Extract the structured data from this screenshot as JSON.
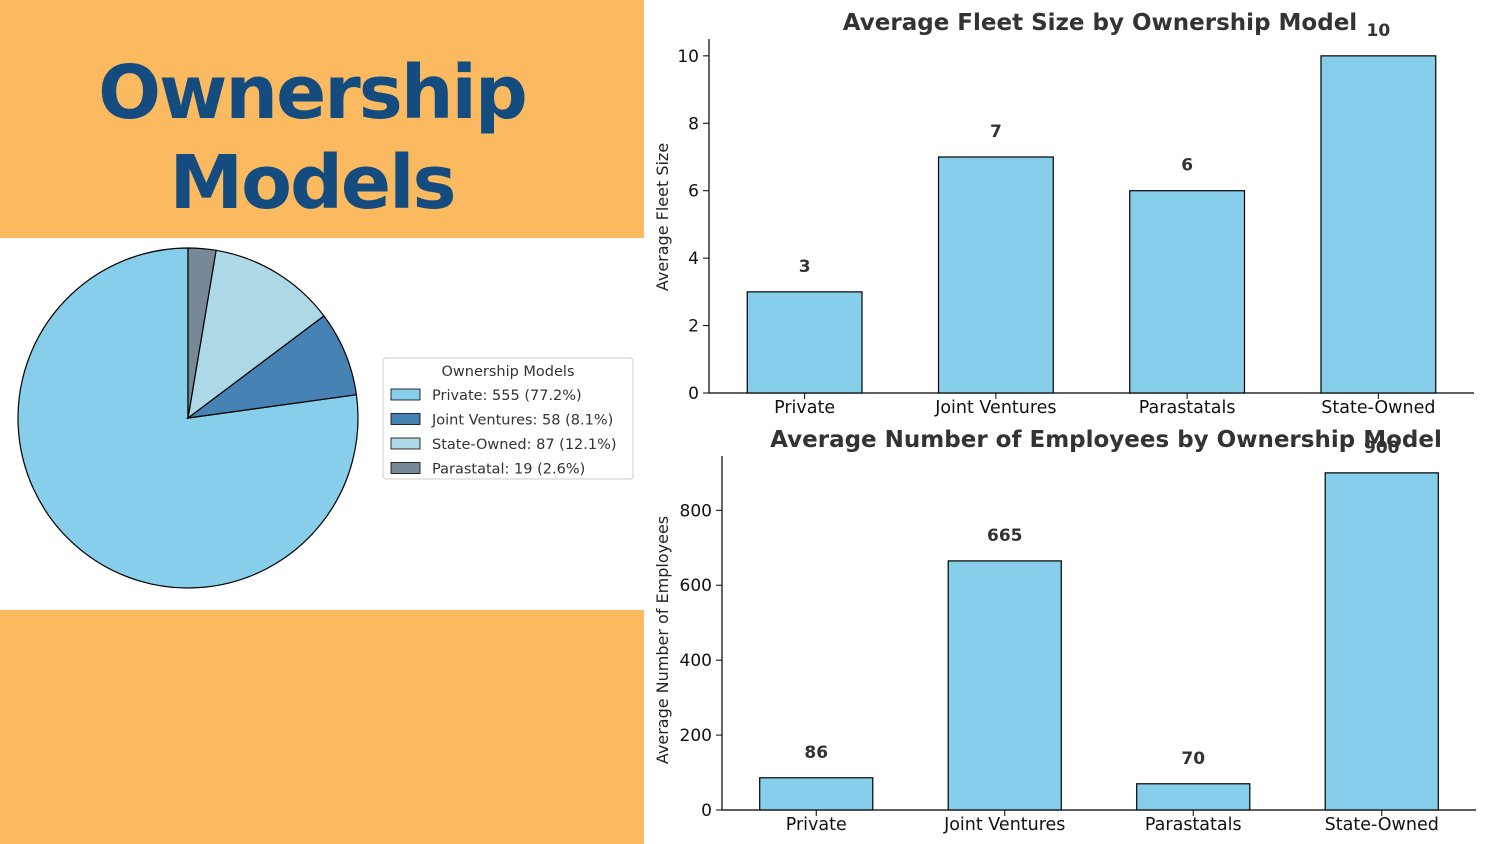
{
  "page": {
    "title_line1": "Ownership",
    "title_line2": "Models",
    "colors": {
      "accent_bg": "#FBBA5F",
      "title": "#154C80"
    }
  },
  "chart_data": [
    {
      "type": "pie",
      "legend": {
        "title": "Ownership Models",
        "placement": "right",
        "entries": [
          "Private: 555 (77.2%)",
          "Joint Ventures: 58 (8.1%)",
          "State-Owned: 87 (12.1%)",
          "Parastatal: 19 (2.6%)"
        ]
      },
      "slices": [
        {
          "label": "Private",
          "value": 555,
          "percent": 77.2,
          "color": "#87CEEB"
        },
        {
          "label": "Joint Ventures",
          "value": 58,
          "percent": 8.1,
          "color": "#4682B4"
        },
        {
          "label": "State-Owned",
          "value": 87,
          "percent": 12.1,
          "color": "#ADD8E6"
        },
        {
          "label": "Parastatal",
          "value": 19,
          "percent": 2.6,
          "color": "#778899"
        }
      ]
    },
    {
      "type": "bar",
      "title": "Average Fleet Size by Ownership Model",
      "xlabel": "",
      "ylabel": "Average Fleet Size",
      "categories": [
        "Private",
        "Joint Ventures",
        "Parastatals",
        "State-Owned"
      ],
      "values": [
        3,
        7,
        6,
        10
      ],
      "ylim": [
        0,
        10.5
      ],
      "yticks": [
        0,
        2,
        4,
        6,
        8,
        10
      ],
      "bar_color": "#87CEEB",
      "grid": false
    },
    {
      "type": "bar",
      "title": "Average Number of Employees by Ownership Model",
      "xlabel": "",
      "ylabel": "Average Number of Employees",
      "categories": [
        "Private",
        "Joint Ventures",
        "Parastatals",
        "State-Owned"
      ],
      "values": [
        86,
        665,
        70,
        900
      ],
      "ylim": [
        0,
        945
      ],
      "yticks": [
        0,
        200,
        400,
        600,
        800
      ],
      "bar_color": "#87CEEB",
      "grid": false
    }
  ]
}
